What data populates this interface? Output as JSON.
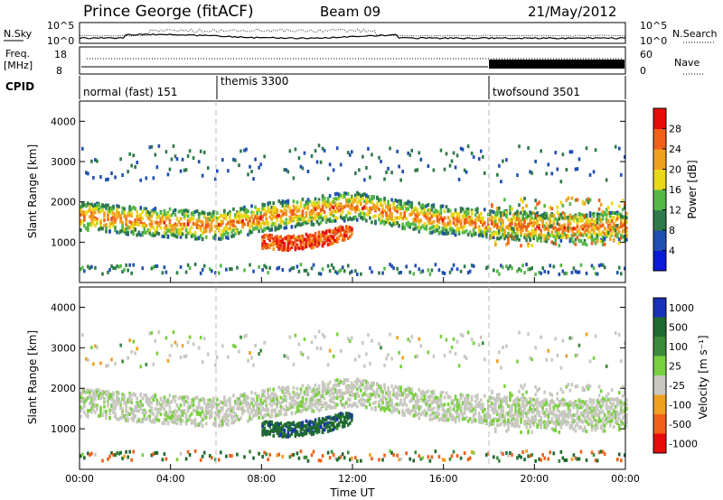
{
  "header": {
    "title": "Prince George (fitACF)",
    "beam": "Beam 09",
    "date": "21/May/2012"
  },
  "panels": {
    "nsky_label": "N.Sky",
    "nsky_ticks": [
      "10^5",
      "10^0"
    ],
    "nsearch_label": "N.Search",
    "nsearch_ticks": [
      "10^5",
      "10^0"
    ],
    "freq_label_1": "Freq.",
    "freq_label_2": "[MHz]",
    "freq_ticks": [
      "18",
      "8"
    ],
    "nave_label": "Nave",
    "nave_ticks": [
      "60",
      "0"
    ],
    "cpid_label": "CPID",
    "cpid_segments": [
      {
        "label": "normal (fast) 151",
        "start_hour": 0
      },
      {
        "label": "themis 3300",
        "start_hour": 6
      },
      {
        "label": "twofsound 3501",
        "start_hour": 18
      }
    ]
  },
  "chart_data": [
    {
      "type": "heatmap",
      "title": "",
      "xlabel": "",
      "ylabel": "Slant Range [km]",
      "xlim": [
        0,
        24
      ],
      "ylim": [
        0,
        4500
      ],
      "yticks": [
        1000,
        2000,
        3000,
        4000
      ],
      "colorbar_label": "Power [dB]",
      "colorbar_ticks": [
        4,
        8,
        12,
        16,
        20,
        24,
        28
      ],
      "colorbar_range": [
        0,
        32
      ],
      "colors": [
        "#0a1ad8",
        "#1f4fb0",
        "#2f7a4a",
        "#55b848",
        "#e8d818",
        "#f0a020",
        "#f06018",
        "#e80c0c"
      ],
      "features": [
        {
          "name": "main band",
          "x": [
            0,
            3,
            6,
            9,
            12,
            15,
            18,
            21,
            24
          ],
          "y": [
            1650,
            1500,
            1400,
            1700,
            1900,
            1600,
            1450,
            1350,
            1400
          ]
        },
        {
          "name": "strong echo",
          "x": [
            8,
            9,
            10,
            11,
            12
          ],
          "y": [
            950,
            900,
            950,
            1050,
            1250
          ]
        }
      ]
    },
    {
      "type": "heatmap",
      "title": "",
      "xlabel": "Time UT",
      "ylabel": "Slant Range [km]",
      "xlim": [
        0,
        24
      ],
      "ylim": [
        0,
        4500
      ],
      "yticks": [
        1000,
        2000,
        3000,
        4000
      ],
      "xticks": [
        "00:00",
        "04:00",
        "08:00",
        "12:00",
        "16:00",
        "20:00",
        "00:00"
      ],
      "colorbar_label": "Velocity [m s⁻¹]",
      "colorbar_ticks": [
        "1000",
        "500",
        "100",
        "25",
        "-25",
        "-100",
        "-500",
        "-1000"
      ],
      "colors": [
        "#1830b8",
        "#1f6a30",
        "#3c8a3c",
        "#7ad040",
        "#c8c8c0",
        "#f0a020",
        "#f06018",
        "#e80c0c"
      ]
    }
  ]
}
